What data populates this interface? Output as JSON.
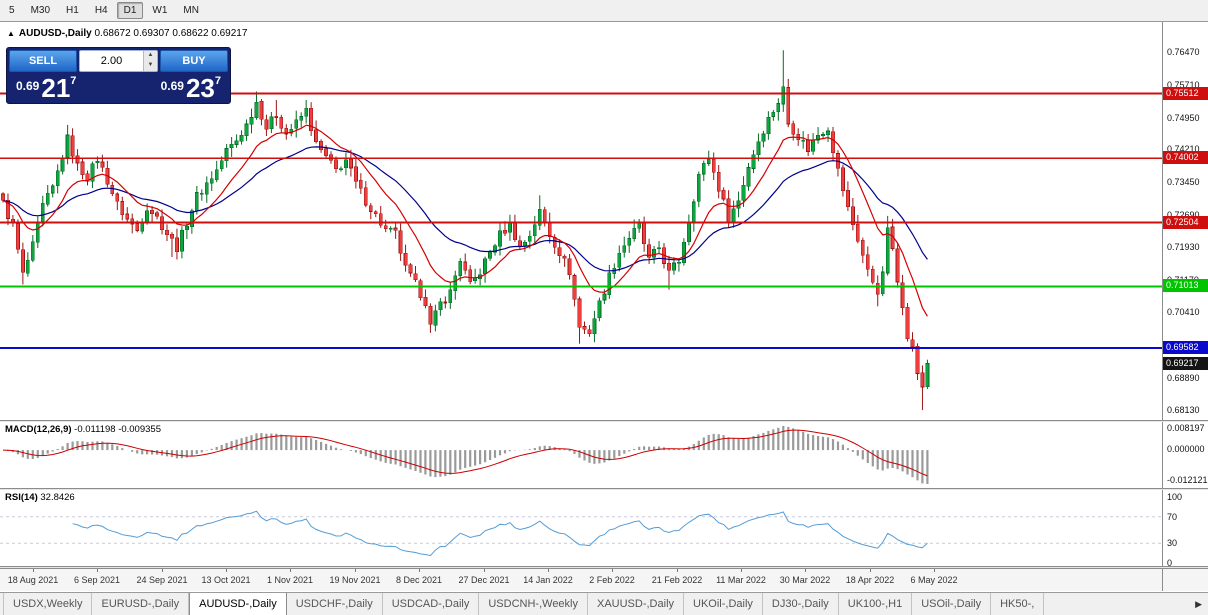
{
  "toolbar": {
    "timeframes": [
      {
        "label": "5",
        "active": false
      },
      {
        "label": "M30",
        "active": false
      },
      {
        "label": "H1",
        "active": false
      },
      {
        "label": "H4",
        "active": false
      },
      {
        "label": "D1",
        "active": true
      },
      {
        "label": "W1",
        "active": false
      },
      {
        "label": "MN",
        "active": false
      }
    ]
  },
  "chart_header": {
    "collapse_icon": "▲",
    "symbol": "AUDUSD-,Daily",
    "ohlc": "0.68672 0.69307 0.68622 0.69217"
  },
  "trade_panel": {
    "sell_label": "SELL",
    "buy_label": "BUY",
    "volume": "2.00",
    "spinner_up": "▲",
    "spinner_down": "▼",
    "sell_price": {
      "small": "0.69",
      "big": "21",
      "sup": "7"
    },
    "buy_price": {
      "small": "0.69",
      "big": "23",
      "sup": "7"
    }
  },
  "price_axis": {
    "ticks": [
      "0.76470",
      "0.75710",
      "0.74950",
      "0.74210",
      "0.73450",
      "0.72690",
      "0.71930",
      "0.71170",
      "0.70410",
      "0.69650",
      "0.68890",
      "0.68130"
    ]
  },
  "levels": [
    {
      "label": "0.75512",
      "value": 0.75512,
      "color": "#cf0e0e"
    },
    {
      "label": "0.74002",
      "value": 0.74002,
      "color": "#cf0e0e"
    },
    {
      "label": "0.72504",
      "value": 0.72504,
      "color": "#cf0e0e"
    },
    {
      "label": "0.71013",
      "value": 0.71013,
      "color": "#00c400"
    },
    {
      "label": "0.69582",
      "value": 0.69582,
      "color": "#0a0acc"
    }
  ],
  "current_price": {
    "label": "0.69217",
    "value": 0.69217,
    "color": "#141414"
  },
  "macd": {
    "title": "MACD(12,26,9)",
    "values": "-0.011198 -0.009355",
    "axis_labels": [
      "0.008197",
      "0.000000",
      "-0.012121"
    ],
    "fast": 12,
    "slow": 26,
    "signal": 9,
    "histogram_color": "#9a9a9a",
    "signal_color": "#cc0000"
  },
  "rsi": {
    "title": "RSI(14)",
    "value": "32.8426",
    "axis_labels": [
      "100",
      "70",
      "30",
      "0"
    ],
    "period": 14,
    "levels": [
      70,
      30
    ],
    "line_color": "#539dd6"
  },
  "dates": [
    "18 Aug 2021",
    "6 Sep 2021",
    "24 Sep 2021",
    "13 Oct 2021",
    "1 Nov 2021",
    "19 Nov 2021",
    "8 Dec 2021",
    "27 Dec 2021",
    "14 Jan 2022",
    "2 Feb 2022",
    "21 Feb 2022",
    "11 Mar 2022",
    "30 Mar 2022",
    "18 Apr 2022",
    "6 May 2022"
  ],
  "tabs": {
    "scroll_arrow": "▶",
    "items": [
      {
        "label": "USDX,Weekly",
        "active": false
      },
      {
        "label": "EURUSD-,Daily",
        "active": false
      },
      {
        "label": "AUDUSD-,Daily",
        "active": true
      },
      {
        "label": "USDCHF-,Daily",
        "active": false
      },
      {
        "label": "USDCAD-,Daily",
        "active": false
      },
      {
        "label": "USDCNH-,Weekly",
        "active": false
      },
      {
        "label": "XAUUSD-,Daily",
        "active": false
      },
      {
        "label": "UKOil-,Daily",
        "active": false
      },
      {
        "label": "DJ30-,Daily",
        "active": false
      },
      {
        "label": "UK100-,H1",
        "active": false
      },
      {
        "label": "USOil-,Daily",
        "active": false
      },
      {
        "label": "HK50-,",
        "active": false
      }
    ]
  },
  "chart_data": {
    "type": "candlestick",
    "symbol": "AUDUSD",
    "timeframe": "Daily",
    "bars": 187,
    "price_range": [
      0.679,
      0.7718
    ],
    "up_color": "#0da63e",
    "up_stroke": "#056a25",
    "down_color": "#ef3e3e",
    "down_stroke": "#9c1414",
    "ma_fast": {
      "period": 12,
      "color": "#d40000"
    },
    "ma_slow": {
      "period": 30,
      "color": "#00008b"
    },
    "anchors": [
      [
        0,
        0.7295
      ],
      [
        2,
        0.7242
      ],
      [
        4,
        0.7128
      ],
      [
        6,
        0.7195
      ],
      [
        8,
        0.7288
      ],
      [
        10,
        0.733
      ],
      [
        13,
        0.7445
      ],
      [
        15,
        0.7382
      ],
      [
        17,
        0.7356
      ],
      [
        19,
        0.74
      ],
      [
        21,
        0.7348
      ],
      [
        23,
        0.7292
      ],
      [
        25,
        0.7258
      ],
      [
        27,
        0.7232
      ],
      [
        29,
        0.7288
      ],
      [
        31,
        0.7262
      ],
      [
        33,
        0.7225
      ],
      [
        35,
        0.7192
      ],
      [
        37,
        0.7252
      ],
      [
        39,
        0.7312
      ],
      [
        41,
        0.7342
      ],
      [
        43,
        0.7372
      ],
      [
        45,
        0.7418
      ],
      [
        47,
        0.7442
      ],
      [
        49,
        0.7478
      ],
      [
        51,
        0.7532
      ],
      [
        53,
        0.7472
      ],
      [
        55,
        0.7502
      ],
      [
        57,
        0.7458
      ],
      [
        59,
        0.7482
      ],
      [
        61,
        0.7512
      ],
      [
        63,
        0.7432
      ],
      [
        65,
        0.7402
      ],
      [
        67,
        0.7372
      ],
      [
        69,
        0.7396
      ],
      [
        71,
        0.7342
      ],
      [
        73,
        0.7302
      ],
      [
        75,
        0.7266
      ],
      [
        77,
        0.7232
      ],
      [
        79,
        0.7224
      ],
      [
        81,
        0.7142
      ],
      [
        83,
        0.7106
      ],
      [
        85,
        0.7066
      ],
      [
        86,
        0.7008
      ],
      [
        88,
        0.7062
      ],
      [
        90,
        0.7088
      ],
      [
        92,
        0.7165
      ],
      [
        94,
        0.7102
      ],
      [
        96,
        0.7136
      ],
      [
        98,
        0.7182
      ],
      [
        100,
        0.7222
      ],
      [
        102,
        0.7246
      ],
      [
        104,
        0.7192
      ],
      [
        106,
        0.7222
      ],
      [
        108,
        0.7276
      ],
      [
        110,
        0.7222
      ],
      [
        112,
        0.7182
      ],
      [
        114,
        0.7136
      ],
      [
        116,
        0.7006
      ],
      [
        118,
        0.6996
      ],
      [
        120,
        0.7062
      ],
      [
        122,
        0.7126
      ],
      [
        124,
        0.7182
      ],
      [
        126,
        0.7216
      ],
      [
        128,
        0.7242
      ],
      [
        130,
        0.7162
      ],
      [
        132,
        0.7192
      ],
      [
        134,
        0.7132
      ],
      [
        136,
        0.7162
      ],
      [
        138,
        0.7256
      ],
      [
        140,
        0.7362
      ],
      [
        142,
        0.7402
      ],
      [
        144,
        0.7332
      ],
      [
        146,
        0.7262
      ],
      [
        148,
        0.7302
      ],
      [
        150,
        0.7382
      ],
      [
        152,
        0.7442
      ],
      [
        154,
        0.7492
      ],
      [
        156,
        0.7532
      ],
      [
        157,
        0.7562
      ],
      [
        158,
        0.7482
      ],
      [
        160,
        0.7452
      ],
      [
        162,
        0.7422
      ],
      [
        164,
        0.7456
      ],
      [
        166,
        0.7472
      ],
      [
        168,
        0.7372
      ],
      [
        170,
        0.7282
      ],
      [
        172,
        0.7212
      ],
      [
        174,
        0.7136
      ],
      [
        176,
        0.7092
      ],
      [
        177,
        0.7126
      ],
      [
        178,
        0.7242
      ],
      [
        179,
        0.7182
      ],
      [
        180,
        0.7112
      ],
      [
        181,
        0.7062
      ],
      [
        182,
        0.699
      ],
      [
        183,
        0.6956
      ],
      [
        184,
        0.6902
      ],
      [
        185,
        0.6867
      ],
      [
        186,
        0.69217
      ]
    ],
    "spikes_high": [
      [
        13,
        0.7478
      ],
      [
        51,
        0.7556
      ],
      [
        55,
        0.7536
      ],
      [
        61,
        0.7536
      ],
      [
        108,
        0.7314
      ],
      [
        157,
        0.7652
      ],
      [
        178,
        0.7266
      ]
    ],
    "spikes_low": [
      [
        4,
        0.7106
      ],
      [
        34,
        0.717
      ],
      [
        86,
        0.6993
      ],
      [
        116,
        0.6968
      ],
      [
        134,
        0.7094
      ],
      [
        176,
        0.7055
      ],
      [
        185,
        0.6813
      ]
    ],
    "last_bar": {
      "open": 0.68672,
      "high": 0.69307,
      "low": 0.68622,
      "close": 0.69217
    }
  }
}
